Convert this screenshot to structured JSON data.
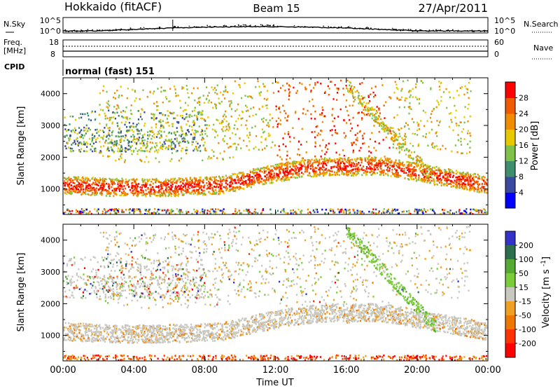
{
  "header": {
    "title": "Hokkaido (fitACF)",
    "beam": "Beam 15",
    "date": "27/Apr/2011"
  },
  "strip": {
    "nsky_label": "N.Sky",
    "nsearch_label": "N.Search",
    "noise_left_top": "10^5",
    "noise_left_bottom": "10^0",
    "noise_right_top": "10^5",
    "noise_right_bottom": "10^0",
    "freq_label_line1": "Freq.",
    "freq_label_line2": "[MHz]",
    "freq_top": "18",
    "freq_bottom": "8",
    "nave_label": "Nave",
    "nave_top": "60",
    "nave_bottom": "0",
    "cpid_label": "CPID",
    "cpid_value": "normal (fast) 151"
  },
  "colors": {
    "power_scale": [
      "#0000ff",
      "#3a4aa0",
      "#3f8f6e",
      "#7fc24a",
      "#e8c800",
      "#f08c00",
      "#f05a00",
      "#ff0000"
    ],
    "velocity_scale": [
      "#3333cc",
      "#2d6e4c",
      "#55aa33",
      "#7acc3a",
      "#c8c8c0",
      "#f0a020",
      "#ee7700",
      "#ff3300",
      "#ff0000"
    ]
  },
  "chart_data": [
    {
      "type": "heatmap",
      "name": "power",
      "xlabel": "",
      "ylabel": "Slant Range [km]",
      "x_ticks": [
        "00:00",
        "04:00",
        "08:00",
        "12:00",
        "16:00",
        "20:00",
        "00:00"
      ],
      "y_ticks": [
        "1000",
        "2000",
        "3000",
        "4000"
      ],
      "ylim": [
        200,
        4500
      ],
      "colorbar_label": "Power [dB]",
      "colorbar_ticks": [
        "4",
        "8",
        "12",
        "16",
        "20",
        "24",
        "28"
      ],
      "colorbar_range": [
        0,
        32
      ]
    },
    {
      "type": "heatmap",
      "name": "velocity",
      "xlabel": "Time UT",
      "ylabel": "Slant Range [km]",
      "x_ticks": [
        "00:00",
        "04:00",
        "08:00",
        "12:00",
        "16:00",
        "20:00",
        "00:00"
      ],
      "y_ticks": [
        "1000",
        "2000",
        "3000",
        "4000"
      ],
      "ylim": [
        200,
        4500
      ],
      "colorbar_label": "Velocity [m s^-1]",
      "colorbar_ticks": [
        "200",
        "100",
        "50",
        "15",
        "-15",
        "-50",
        "-100",
        "-200"
      ],
      "colorbar_range": [
        -250,
        250
      ]
    }
  ]
}
